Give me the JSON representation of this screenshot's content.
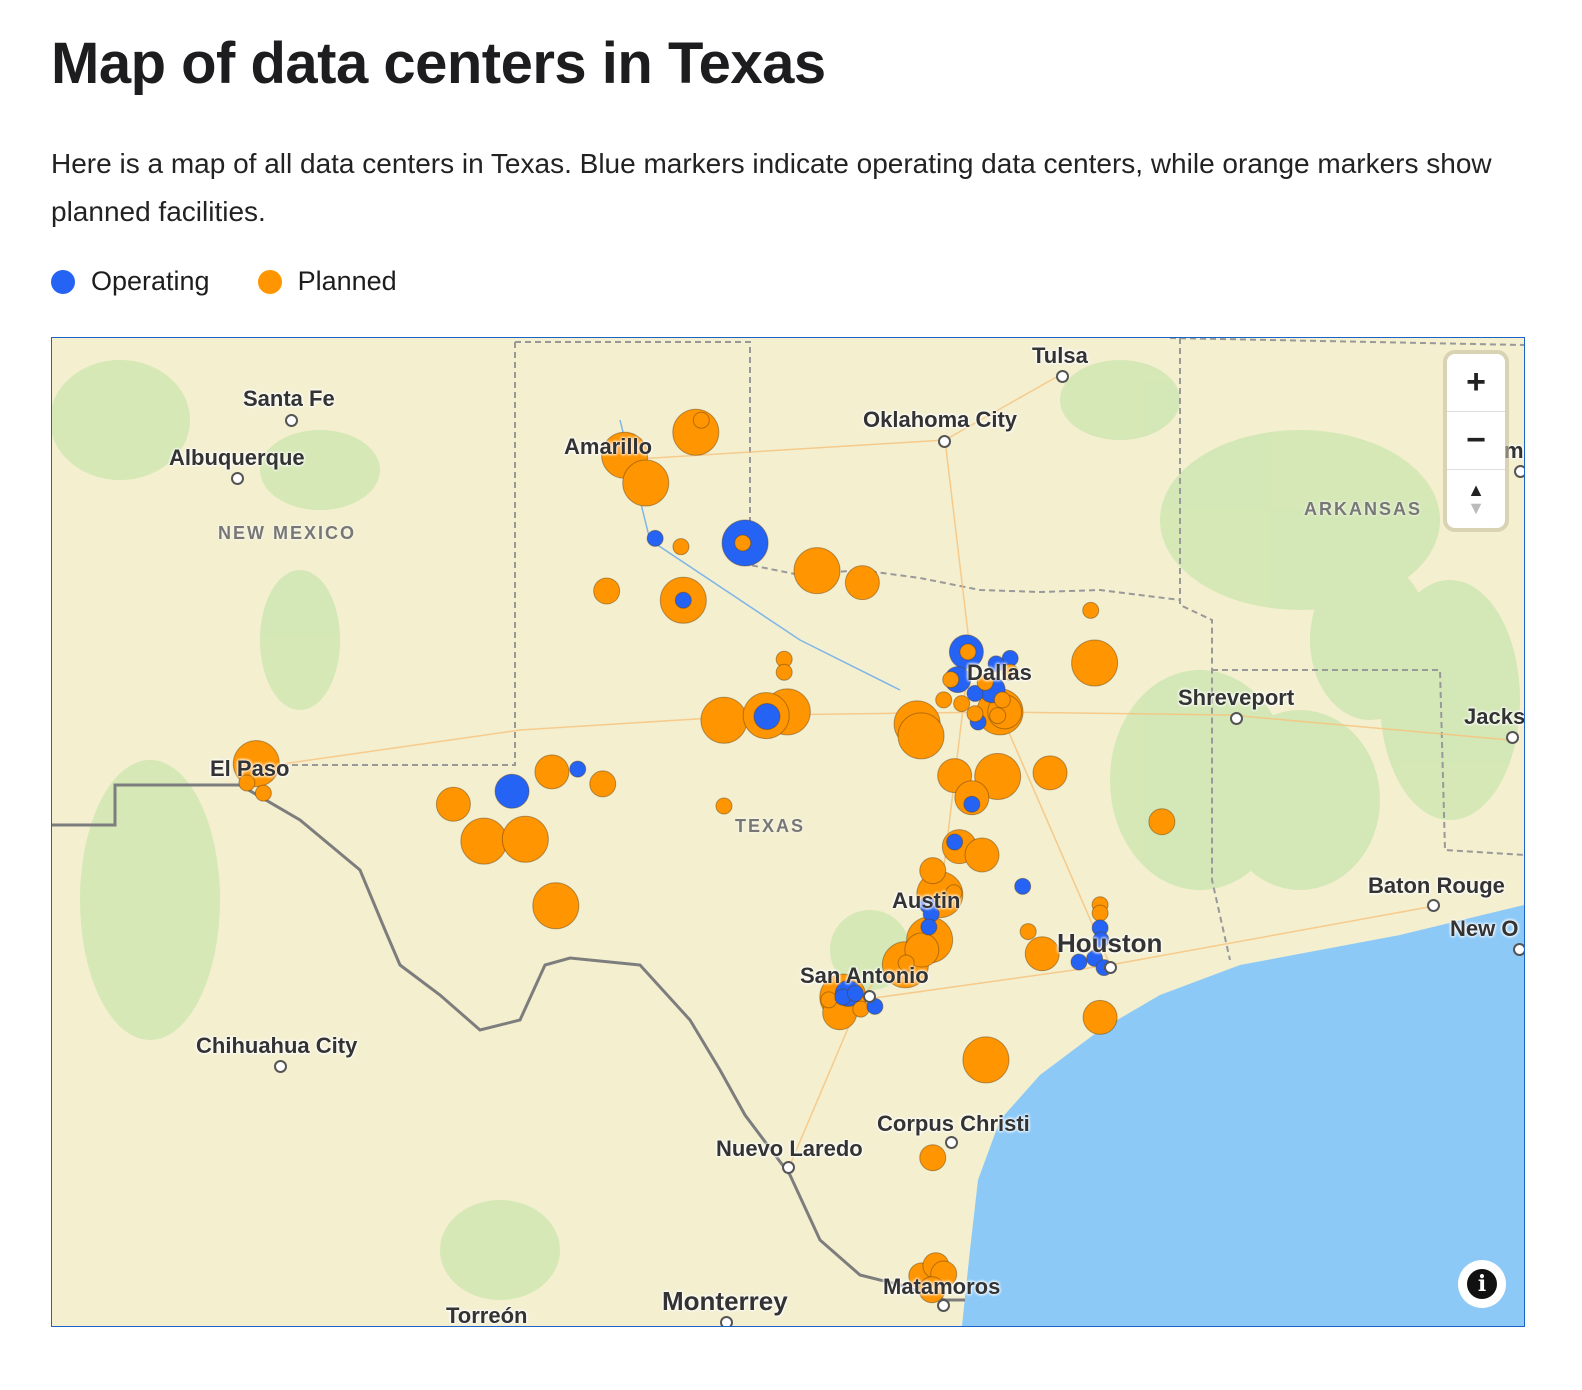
{
  "title": "Map of data centers in Texas",
  "description": "Here is a map of all data centers in Texas. Blue markers indicate operating data centers, while orange markers show planned facilities.",
  "legend": [
    {
      "label": "Operating",
      "color": "#2563f5"
    },
    {
      "label": "Planned",
      "color": "#ff9500"
    }
  ],
  "map": {
    "cities": {
      "santa_fe": "Santa Fe",
      "albuquerque": "Albuquerque",
      "tulsa": "Tulsa",
      "oklahoma_city": "Oklahoma City",
      "amarillo": "Amarillo",
      "dallas": "Dallas",
      "shreveport": "Shreveport",
      "jackson": "Jacks",
      "el_paso": "El Paso",
      "baton_rouge": "Baton Rouge",
      "new_orleans": "New O",
      "austin": "Austin",
      "houston": "Houston",
      "san_antonio": "San Antonio",
      "chihuahua": "Chihuahua City",
      "corpus_christi": "Corpus Christi",
      "nuevo_laredo": "Nuevo Laredo",
      "monterrey": "Monterrey",
      "torreon": "Torreón",
      "matamoros": "Matamoros",
      "memphis": "m"
    },
    "regions": {
      "new_mexico": "NEW MEXICO",
      "texas": "TEXAS",
      "arkansas": "ARKANSAS"
    },
    "controls": {
      "zoom_in": "+",
      "zoom_out": "−",
      "compass": "▲",
      "info": "i"
    },
    "markers": [
      {
        "lon": -101.57,
        "lat": 35.28,
        "status": "planned",
        "size": "xl"
      },
      {
        "lon": -101.3,
        "lat": 34.98,
        "status": "planned",
        "size": "xl"
      },
      {
        "lon": -100.66,
        "lat": 35.53,
        "status": "planned",
        "size": "xl"
      },
      {
        "lon": -100.59,
        "lat": 35.66,
        "status": "planned",
        "size": "s"
      },
      {
        "lon": -101.18,
        "lat": 34.38,
        "status": "operating",
        "size": "s"
      },
      {
        "lon": -100.85,
        "lat": 34.29,
        "status": "planned",
        "size": "s"
      },
      {
        "lon": -100.03,
        "lat": 34.33,
        "status": "operating",
        "size": "xl"
      },
      {
        "lon": -100.06,
        "lat": 34.33,
        "status": "planned",
        "size": "s"
      },
      {
        "lon": -99.11,
        "lat": 34.03,
        "status": "planned",
        "size": "xl"
      },
      {
        "lon": -98.53,
        "lat": 33.9,
        "status": "planned",
        "size": "l"
      },
      {
        "lon": -101.8,
        "lat": 33.81,
        "status": "planned",
        "size": "m"
      },
      {
        "lon": -100.82,
        "lat": 33.71,
        "status": "planned",
        "size": "xl"
      },
      {
        "lon": -100.82,
        "lat": 33.71,
        "status": "operating",
        "size": "s"
      },
      {
        "lon": -99.53,
        "lat": 33.07,
        "status": "planned",
        "size": "s"
      },
      {
        "lon": -99.53,
        "lat": 32.93,
        "status": "planned",
        "size": "s"
      },
      {
        "lon": -97.2,
        "lat": 33.15,
        "status": "operating",
        "size": "l"
      },
      {
        "lon": -97.18,
        "lat": 33.15,
        "status": "planned",
        "size": "s"
      },
      {
        "lon": -97.31,
        "lat": 32.85,
        "status": "operating",
        "size": "m"
      },
      {
        "lon": -97.4,
        "lat": 32.85,
        "status": "planned",
        "size": "s"
      },
      {
        "lon": -96.64,
        "lat": 33.08,
        "status": "operating",
        "size": "s"
      },
      {
        "lon": -96.82,
        "lat": 33.02,
        "status": "operating",
        "size": "s"
      },
      {
        "lon": -96.87,
        "lat": 32.74,
        "status": "operating",
        "size": "m"
      },
      {
        "lon": -97.09,
        "lat": 32.7,
        "status": "operating",
        "size": "s"
      },
      {
        "lon": -96.96,
        "lat": 32.82,
        "status": "planned",
        "size": "s"
      },
      {
        "lon": -96.64,
        "lat": 32.93,
        "status": "planned",
        "size": "s"
      },
      {
        "lon": -97.49,
        "lat": 32.63,
        "status": "planned",
        "size": "s"
      },
      {
        "lon": -97.26,
        "lat": 32.59,
        "status": "planned",
        "size": "s"
      },
      {
        "lon": -96.77,
        "lat": 32.5,
        "status": "planned",
        "size": "xl"
      },
      {
        "lon": -96.71,
        "lat": 32.5,
        "status": "planned",
        "size": "l"
      },
      {
        "lon": -96.74,
        "lat": 32.63,
        "status": "planned",
        "size": "s"
      },
      {
        "lon": -96.8,
        "lat": 32.46,
        "status": "planned",
        "size": "s"
      },
      {
        "lon": -97.05,
        "lat": 32.39,
        "status": "operating",
        "size": "s"
      },
      {
        "lon": -97.09,
        "lat": 32.48,
        "status": "planned",
        "size": "s"
      },
      {
        "lon": -95.56,
        "lat": 33.03,
        "status": "planned",
        "size": "xl"
      },
      {
        "lon": -95.61,
        "lat": 33.6,
        "status": "planned",
        "size": "s"
      },
      {
        "lon": -97.83,
        "lat": 32.37,
        "status": "planned",
        "size": "xl"
      },
      {
        "lon": -97.78,
        "lat": 32.24,
        "status": "planned",
        "size": "xl"
      },
      {
        "lon": -100.3,
        "lat": 32.41,
        "status": "planned",
        "size": "xl"
      },
      {
        "lon": -99.49,
        "lat": 32.5,
        "status": "planned",
        "size": "xl"
      },
      {
        "lon": -99.76,
        "lat": 32.46,
        "status": "planned",
        "size": "xl"
      },
      {
        "lon": -99.75,
        "lat": 32.45,
        "status": "operating",
        "size": "m"
      },
      {
        "lon": -106.28,
        "lat": 31.94,
        "status": "planned",
        "size": "xl"
      },
      {
        "lon": -106.4,
        "lat": 31.73,
        "status": "planned",
        "size": "s"
      },
      {
        "lon": -106.19,
        "lat": 31.62,
        "status": "planned",
        "size": "s"
      },
      {
        "lon": -103.01,
        "lat": 31.64,
        "status": "operating",
        "size": "l"
      },
      {
        "lon": -102.5,
        "lat": 31.85,
        "status": "planned",
        "size": "l"
      },
      {
        "lon": -102.17,
        "lat": 31.88,
        "status": "operating",
        "size": "s"
      },
      {
        "lon": -101.85,
        "lat": 31.72,
        "status": "planned",
        "size": "m"
      },
      {
        "lon": -103.76,
        "lat": 31.5,
        "status": "planned",
        "size": "l"
      },
      {
        "lon": -103.37,
        "lat": 31.1,
        "status": "planned",
        "size": "xl"
      },
      {
        "lon": -102.84,
        "lat": 31.12,
        "status": "planned",
        "size": "xl"
      },
      {
        "lon": -102.45,
        "lat": 30.4,
        "status": "planned",
        "size": "xl"
      },
      {
        "lon": -100.3,
        "lat": 31.48,
        "status": "planned",
        "size": "s"
      },
      {
        "lon": -97.35,
        "lat": 31.81,
        "status": "planned",
        "size": "l"
      },
      {
        "lon": -96.8,
        "lat": 31.8,
        "status": "planned",
        "size": "xl"
      },
      {
        "lon": -96.13,
        "lat": 31.84,
        "status": "planned",
        "size": "l"
      },
      {
        "lon": -97.13,
        "lat": 31.57,
        "status": "planned",
        "size": "l"
      },
      {
        "lon": -97.13,
        "lat": 31.5,
        "status": "operating",
        "size": "s"
      },
      {
        "lon": -97.29,
        "lat": 31.04,
        "status": "planned",
        "size": "l"
      },
      {
        "lon": -97.0,
        "lat": 30.95,
        "status": "planned",
        "size": "l"
      },
      {
        "lon": -97.35,
        "lat": 31.09,
        "status": "operating",
        "size": "s"
      },
      {
        "lon": -97.63,
        "lat": 30.78,
        "status": "planned",
        "size": "m"
      },
      {
        "lon": -96.48,
        "lat": 30.61,
        "status": "operating",
        "size": "s"
      },
      {
        "lon": -94.7,
        "lat": 31.31,
        "status": "planned",
        "size": "m"
      },
      {
        "lon": -97.54,
        "lat": 30.52,
        "status": "planned",
        "size": "xl"
      },
      {
        "lon": -97.36,
        "lat": 30.54,
        "status": "planned",
        "size": "s"
      },
      {
        "lon": -97.7,
        "lat": 30.41,
        "status": "operating",
        "size": "s"
      },
      {
        "lon": -97.65,
        "lat": 30.31,
        "status": "operating",
        "size": "s"
      },
      {
        "lon": -97.68,
        "lat": 30.17,
        "status": "operating",
        "size": "s"
      },
      {
        "lon": -97.67,
        "lat": 30.03,
        "status": "planned",
        "size": "xl"
      },
      {
        "lon": -97.77,
        "lat": 29.92,
        "status": "planned",
        "size": "l"
      },
      {
        "lon": -97.98,
        "lat": 29.76,
        "status": "planned",
        "size": "xl"
      },
      {
        "lon": -97.97,
        "lat": 29.78,
        "status": "planned",
        "size": "s"
      },
      {
        "lon": -95.49,
        "lat": 30.41,
        "status": "planned",
        "size": "s"
      },
      {
        "lon": -95.49,
        "lat": 30.32,
        "status": "planned",
        "size": "s"
      },
      {
        "lon": -95.49,
        "lat": 30.16,
        "status": "operating",
        "size": "s"
      },
      {
        "lon": -95.48,
        "lat": 30.03,
        "status": "operating",
        "size": "s"
      },
      {
        "lon": -95.76,
        "lat": 29.79,
        "status": "operating",
        "size": "s"
      },
      {
        "lon": -95.56,
        "lat": 29.83,
        "status": "operating",
        "size": "s"
      },
      {
        "lon": -95.44,
        "lat": 29.73,
        "status": "operating",
        "size": "s"
      },
      {
        "lon": -96.23,
        "lat": 29.88,
        "status": "planned",
        "size": "l"
      },
      {
        "lon": -96.41,
        "lat": 30.12,
        "status": "planned",
        "size": "s"
      },
      {
        "lon": -95.49,
        "lat": 29.19,
        "status": "planned",
        "size": "l"
      },
      {
        "lon": -98.78,
        "lat": 29.41,
        "status": "planned",
        "size": "xl"
      },
      {
        "lon": -98.82,
        "lat": 29.24,
        "status": "planned",
        "size": "l"
      },
      {
        "lon": -98.96,
        "lat": 29.38,
        "status": "planned",
        "size": "s"
      },
      {
        "lon": -98.55,
        "lat": 29.28,
        "status": "planned",
        "size": "s"
      },
      {
        "lon": -98.71,
        "lat": 29.45,
        "status": "operating",
        "size": "m"
      },
      {
        "lon": -98.78,
        "lat": 29.41,
        "status": "operating",
        "size": "s"
      },
      {
        "lon": -98.62,
        "lat": 29.45,
        "status": "operating",
        "size": "s"
      },
      {
        "lon": -98.37,
        "lat": 29.31,
        "status": "operating",
        "size": "s"
      },
      {
        "lon": -96.95,
        "lat": 28.73,
        "status": "planned",
        "size": "xl"
      },
      {
        "lon": -97.63,
        "lat": 27.67,
        "status": "planned",
        "size": "m"
      },
      {
        "lon": -97.77,
        "lat": 26.39,
        "status": "planned",
        "size": "m"
      },
      {
        "lon": -97.59,
        "lat": 26.5,
        "status": "planned",
        "size": "m"
      },
      {
        "lon": -97.49,
        "lat": 26.41,
        "status": "planned",
        "size": "m"
      },
      {
        "lon": -97.64,
        "lat": 26.24,
        "status": "planned",
        "size": "m"
      }
    ]
  }
}
